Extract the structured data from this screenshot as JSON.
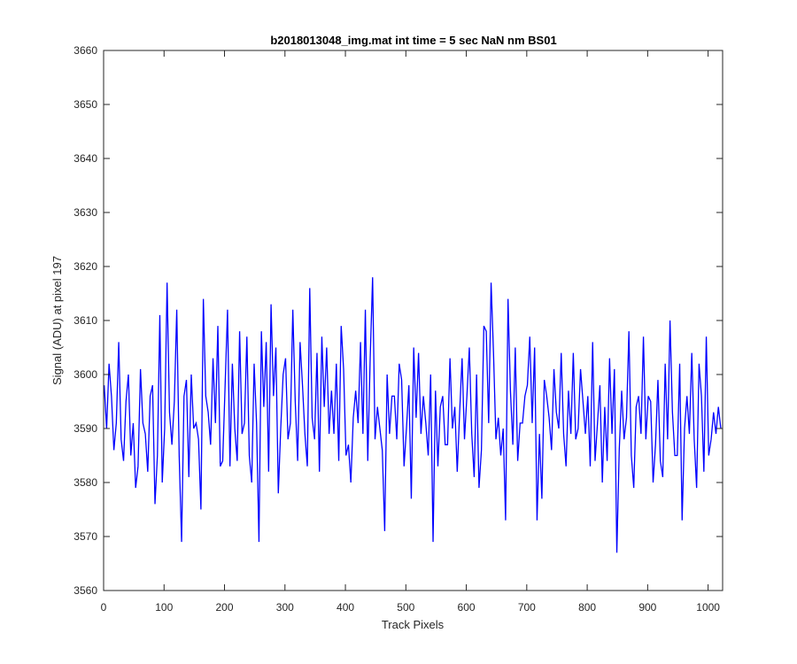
{
  "chart_data": {
    "type": "line",
    "title": "b2018013048_img.mat int time = 5 sec  NaN nm BS01",
    "xlabel": "Track Pixels",
    "ylabel": "Signal (ADU) at pixel 197",
    "xlim": [
      0,
      1024
    ],
    "ylim": [
      3560,
      3660
    ],
    "x_ticks": [
      0,
      100,
      200,
      300,
      400,
      500,
      600,
      700,
      800,
      900,
      1000
    ],
    "y_ticks": [
      3560,
      3570,
      3580,
      3590,
      3600,
      3610,
      3620,
      3630,
      3640,
      3650,
      3660
    ],
    "grid": false,
    "series_color": "#0000ff",
    "series": [
      {
        "x_start": 1,
        "x_step": 4,
        "values": [
          3598,
          3590,
          3602,
          3596,
          3586,
          3591,
          3606,
          3588,
          3584,
          3595,
          3600,
          3585,
          3591,
          3579,
          3583,
          3601,
          3591,
          3589,
          3582,
          3596,
          3598,
          3576,
          3585,
          3611,
          3580,
          3590,
          3617,
          3593,
          3587,
          3595,
          3612,
          3585,
          3569,
          3596,
          3599,
          3581,
          3600,
          3590,
          3591,
          3588,
          3575,
          3614,
          3596,
          3593,
          3587,
          3603,
          3591,
          3609,
          3583,
          3584,
          3598,
          3612,
          3583,
          3602,
          3590,
          3584,
          3608,
          3589,
          3591,
          3607,
          3585,
          3580,
          3602,
          3591,
          3569,
          3608,
          3594,
          3606,
          3582,
          3613,
          3596,
          3605,
          3578,
          3590,
          3600,
          3603,
          3588,
          3591,
          3612,
          3595,
          3584,
          3606,
          3598,
          3589,
          3583,
          3616,
          3592,
          3588,
          3604,
          3582,
          3607,
          3594,
          3605,
          3589,
          3597,
          3589,
          3602,
          3584,
          3609,
          3601,
          3585,
          3587,
          3580,
          3592,
          3597,
          3591,
          3606,
          3589,
          3612,
          3584,
          3603,
          3618,
          3588,
          3594,
          3590,
          3586,
          3571,
          3600,
          3589,
          3596,
          3596,
          3588,
          3602,
          3599,
          3583,
          3590,
          3598,
          3577,
          3605,
          3592,
          3604,
          3589,
          3596,
          3591,
          3585,
          3600,
          3569,
          3597,
          3583,
          3594,
          3596,
          3587,
          3587,
          3603,
          3590,
          3594,
          3582,
          3593,
          3603,
          3588,
          3596,
          3605,
          3589,
          3581,
          3600,
          3579,
          3586,
          3609,
          3608,
          3591,
          3617,
          3604,
          3588,
          3592,
          3585,
          3590,
          3573,
          3614,
          3597,
          3587,
          3605,
          3584,
          3591,
          3591,
          3596,
          3598,
          3607,
          3591,
          3605,
          3573,
          3589,
          3577,
          3599,
          3596,
          3592,
          3586,
          3601,
          3593,
          3590,
          3604,
          3589,
          3583,
          3597,
          3589,
          3604,
          3588,
          3590,
          3601,
          3595,
          3589,
          3596,
          3583,
          3606,
          3584,
          3591,
          3598,
          3580,
          3594,
          3584,
          3603,
          3589,
          3601,
          3567,
          3586,
          3597,
          3588,
          3592,
          3608,
          3585,
          3579,
          3594,
          3596,
          3589,
          3607,
          3588,
          3596,
          3595,
          3580,
          3587,
          3599,
          3584,
          3581,
          3602,
          3588,
          3610,
          3593,
          3585,
          3585,
          3602,
          3573,
          3590,
          3596,
          3589,
          3604,
          3588,
          3579,
          3602,
          3596,
          3582,
          3607,
          3585,
          3588,
          3593,
          3589,
          3594,
          3590
        ]
      }
    ]
  }
}
